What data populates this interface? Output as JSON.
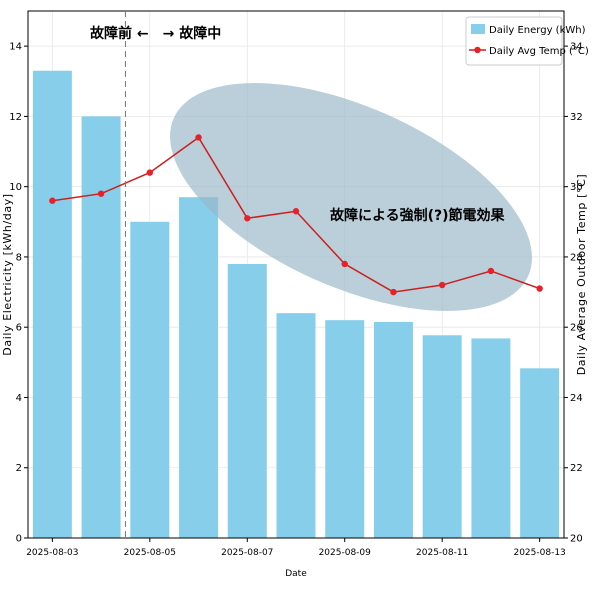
{
  "chart_data": {
    "type": "bar",
    "xlabel": "Date",
    "ylabel": "Daily Electricity [kWh/day]",
    "y2label": "Daily Average Outdoor Temp [°C]",
    "ylim": [
      0,
      15
    ],
    "y2lim": [
      20,
      35
    ],
    "yticks": [
      0,
      2,
      4,
      6,
      8,
      10,
      12,
      14
    ],
    "y2ticks": [
      20,
      22,
      24,
      26,
      28,
      30,
      32,
      34
    ],
    "grid": true,
    "legend_position": "top-right",
    "dates": [
      "2025-08-03",
      "2025-08-04",
      "2025-08-05",
      "2025-08-06",
      "2025-08-07",
      "2025-08-08",
      "2025-08-09",
      "2025-08-10",
      "2025-08-11",
      "2025-08-12",
      "2025-08-13"
    ],
    "xtick_labels": [
      "2025-08-03",
      "2025-08-05",
      "2025-08-07",
      "2025-08-09",
      "2025-08-11",
      "2025-08-13"
    ],
    "series": [
      {
        "name": "Daily Energy (kWh)",
        "kind": "bar",
        "axis": "left",
        "color": "#87ceeb",
        "values": [
          13.3,
          12.0,
          9.0,
          9.7,
          7.8,
          6.4,
          6.2,
          6.15,
          5.77,
          5.68,
          4.83
        ]
      },
      {
        "name": "Daily Avg Temp (°C)",
        "kind": "line",
        "axis": "right",
        "color": "#cc1f1f",
        "values": [
          29.6,
          29.8,
          30.4,
          31.4,
          29.1,
          29.3,
          27.8,
          27.0,
          27.2,
          27.6,
          27.1
        ]
      }
    ],
    "annotations": {
      "before_after_label": "故障前 ←　→ 故障中",
      "divider_between": [
        "2025-08-04",
        "2025-08-05"
      ],
      "ellipse_label": "故障による強制(?)節電効果",
      "ellipse_color": "#9ab8c8"
    }
  }
}
